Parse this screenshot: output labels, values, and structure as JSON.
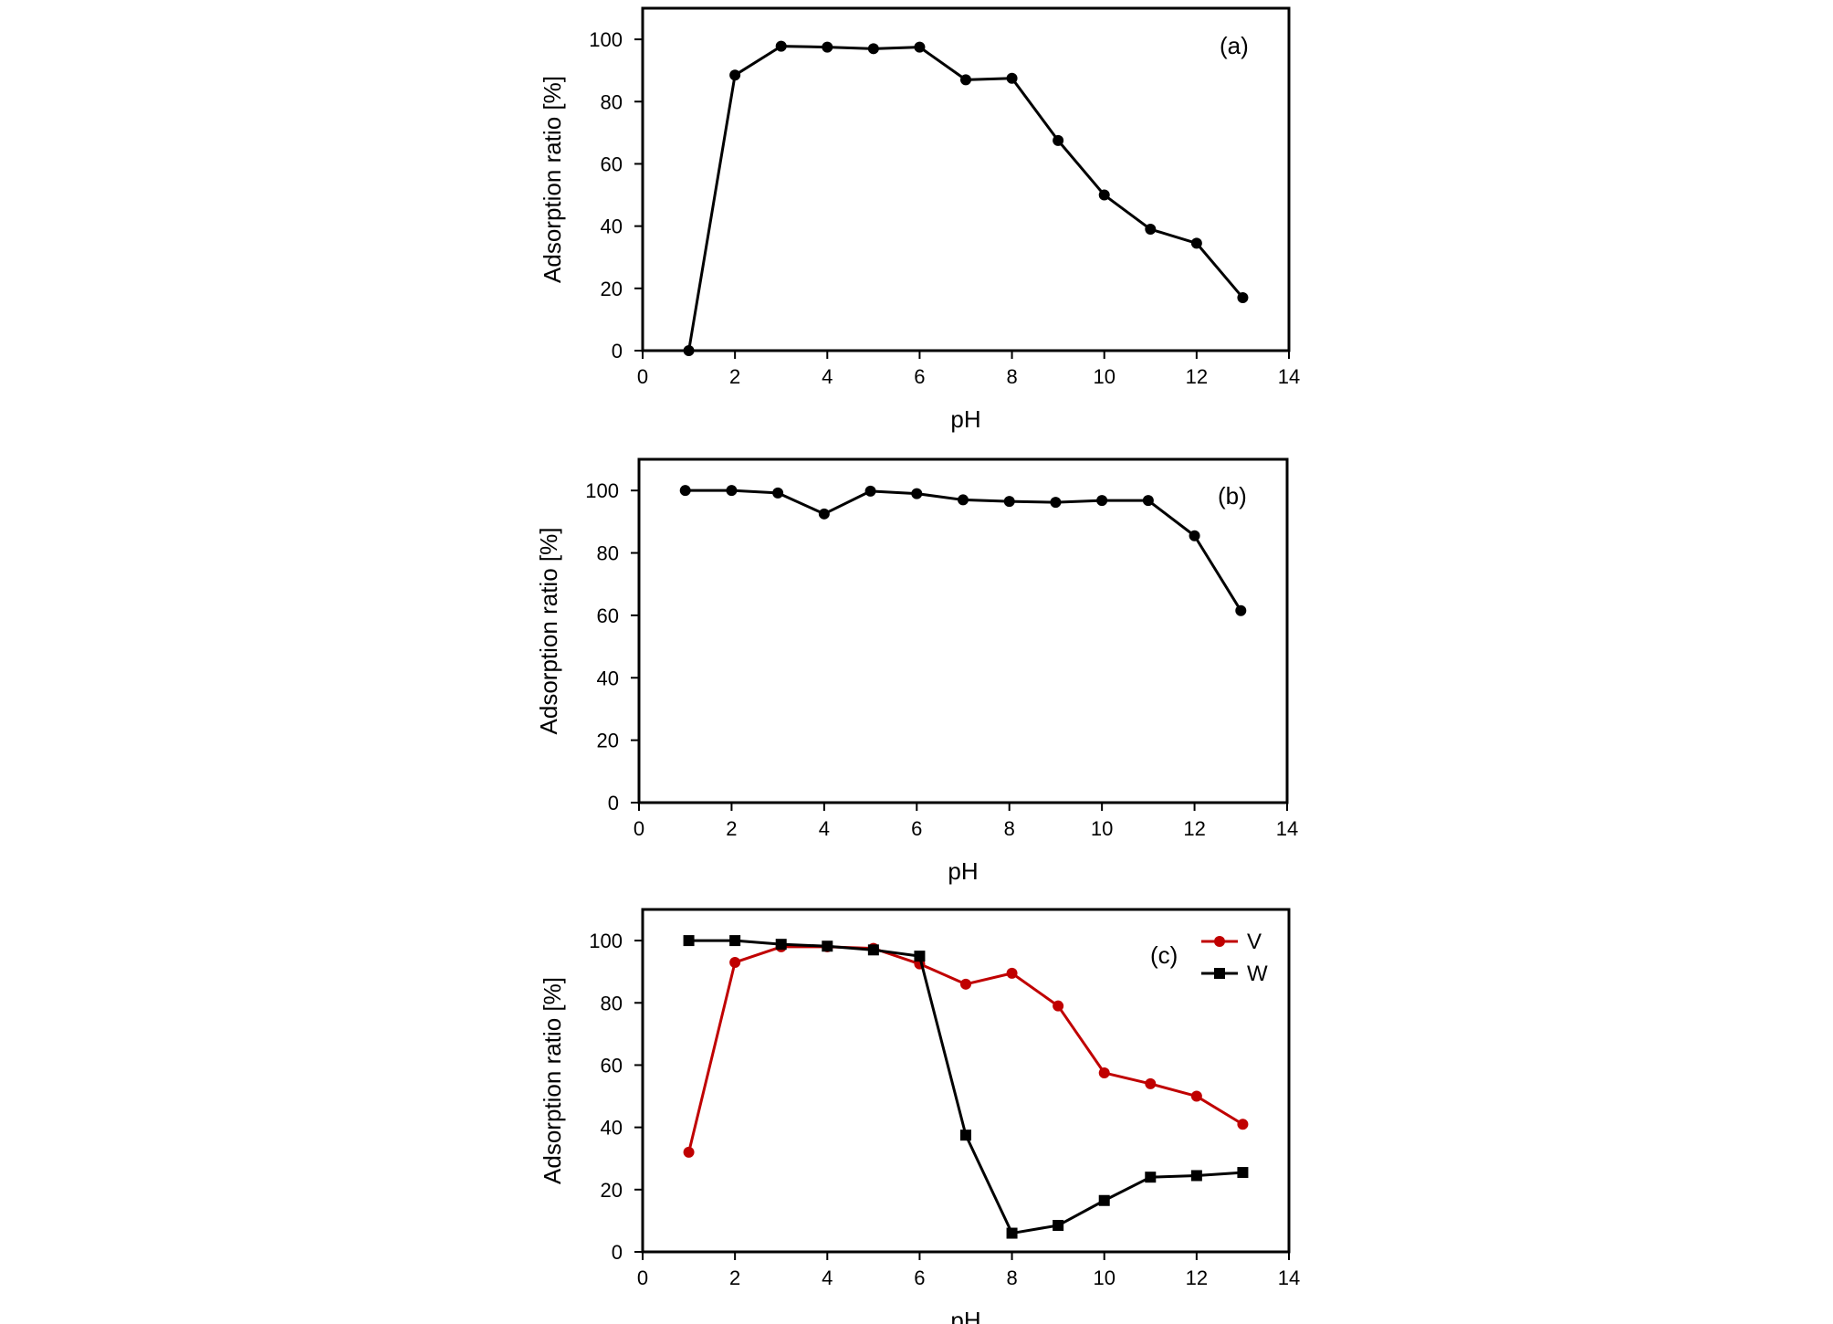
{
  "chart_data": [
    {
      "type": "line",
      "panel_label": "(a)",
      "xlabel": "pH",
      "ylabel": "Adsorption ratio [%]",
      "xlim": [
        0,
        14
      ],
      "ylim": [
        0,
        110
      ],
      "xticks": [
        0,
        2,
        4,
        6,
        8,
        10,
        12,
        14
      ],
      "yticks": [
        0,
        20,
        40,
        60,
        80,
        100
      ],
      "grid": false,
      "legend": false,
      "series": [
        {
          "color": "#000000",
          "marker": "circle",
          "points": [
            {
              "x": 1,
              "y": 0
            },
            {
              "x": 2,
              "y": 88.5
            },
            {
              "x": 3,
              "y": 97.8
            },
            {
              "x": 4,
              "y": 97.5
            },
            {
              "x": 5,
              "y": 97
            },
            {
              "x": 6,
              "y": 97.5
            },
            {
              "x": 7,
              "y": 87
            },
            {
              "x": 8,
              "y": 87.5
            },
            {
              "x": 9,
              "y": 67.5
            },
            {
              "x": 10,
              "y": 50
            },
            {
              "x": 11,
              "y": 39
            },
            {
              "x": 12,
              "y": 34.5
            },
            {
              "x": 13,
              "y": 17
            }
          ]
        }
      ]
    },
    {
      "type": "line",
      "panel_label": "(b)",
      "xlabel": "pH",
      "ylabel": "Adsorption ratio [%]",
      "xlim": [
        0,
        14
      ],
      "ylim": [
        0,
        110
      ],
      "xticks": [
        0,
        2,
        4,
        6,
        8,
        10,
        12,
        14
      ],
      "yticks": [
        0,
        20,
        40,
        60,
        80,
        100
      ],
      "grid": false,
      "legend": false,
      "series": [
        {
          "color": "#000000",
          "marker": "circle",
          "points": [
            {
              "x": 1,
              "y": 100
            },
            {
              "x": 2,
              "y": 100
            },
            {
              "x": 3,
              "y": 99.2
            },
            {
              "x": 4,
              "y": 92.5
            },
            {
              "x": 5,
              "y": 99.8
            },
            {
              "x": 6,
              "y": 99
            },
            {
              "x": 7,
              "y": 97
            },
            {
              "x": 8,
              "y": 96.5
            },
            {
              "x": 9,
              "y": 96.2
            },
            {
              "x": 10,
              "y": 96.8
            },
            {
              "x": 11,
              "y": 96.8
            },
            {
              "x": 12,
              "y": 85.5
            },
            {
              "x": 13,
              "y": 61.5
            }
          ]
        }
      ]
    },
    {
      "type": "line",
      "panel_label": "(c)",
      "xlabel": "pH",
      "ylabel": "Adsorption ratio [%]",
      "xlim": [
        0,
        14
      ],
      "ylim": [
        0,
        110
      ],
      "xticks": [
        0,
        2,
        4,
        6,
        8,
        10,
        12,
        14
      ],
      "yticks": [
        0,
        20,
        40,
        60,
        80,
        100
      ],
      "grid": false,
      "legend": "top-right",
      "series": [
        {
          "name": "V",
          "color": "#c00000",
          "marker": "circle",
          "points": [
            {
              "x": 1,
              "y": 32
            },
            {
              "x": 2,
              "y": 93
            },
            {
              "x": 3,
              "y": 98
            },
            {
              "x": 4,
              "y": 98
            },
            {
              "x": 5,
              "y": 97.5
            },
            {
              "x": 6,
              "y": 92.5
            },
            {
              "x": 7,
              "y": 86
            },
            {
              "x": 8,
              "y": 89.5
            },
            {
              "x": 9,
              "y": 79
            },
            {
              "x": 10,
              "y": 57.5
            },
            {
              "x": 11,
              "y": 54
            },
            {
              "x": 12,
              "y": 50
            },
            {
              "x": 13,
              "y": 41
            }
          ]
        },
        {
          "name": "W",
          "color": "#000000",
          "marker": "square",
          "points": [
            {
              "x": 1,
              "y": 100
            },
            {
              "x": 2,
              "y": 100
            },
            {
              "x": 3,
              "y": 98.8
            },
            {
              "x": 4,
              "y": 98.2
            },
            {
              "x": 5,
              "y": 97
            },
            {
              "x": 6,
              "y": 95
            },
            {
              "x": 7,
              "y": 37.5
            },
            {
              "x": 8,
              "y": 6
            },
            {
              "x": 9,
              "y": 8.5
            },
            {
              "x": 10,
              "y": 16.5
            },
            {
              "x": 11,
              "y": 24
            },
            {
              "x": 12,
              "y": 24.5
            },
            {
              "x": 13,
              "y": 25.5
            }
          ]
        }
      ]
    }
  ]
}
